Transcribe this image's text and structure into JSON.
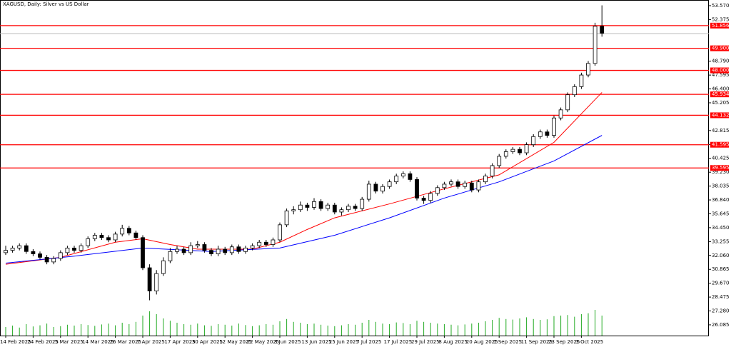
{
  "chart_data": {
    "type": "candlestick",
    "title": "XAGUSD, Daily:  Silver vs US Dollar",
    "categories": [
      "14 Feb 2025",
      null,
      null,
      null,
      "24 Feb 2025",
      null,
      null,
      null,
      "5 Mar 2025",
      null,
      null,
      null,
      "14 Mar 2025",
      null,
      null,
      null,
      "26 Mar 2025",
      null,
      null,
      null,
      "7 Apr 2025",
      null,
      null,
      null,
      "17 Apr 2025",
      null,
      null,
      null,
      "30 Apr 2025",
      null,
      null,
      null,
      "12 May 2025",
      null,
      null,
      null,
      "22 May 2025",
      null,
      null,
      null,
      "3 Jun 2025",
      null,
      null,
      null,
      "13 Jun 2025",
      null,
      null,
      null,
      "25 Jun 2025",
      null,
      null,
      null,
      "7 Jul 2025",
      null,
      null,
      null,
      "17 Jul 2025",
      null,
      null,
      null,
      "29 Jul 2025",
      null,
      null,
      null,
      "8 Aug 2025",
      null,
      null,
      null,
      "20 Aug 2025",
      null,
      null,
      null,
      "1 Sep 2025",
      null,
      null,
      null,
      "11 Sep 2025",
      null,
      null,
      null,
      "23 Sep 2025",
      null,
      null,
      null,
      "3 Oct 2025",
      null,
      null,
      null
    ],
    "ohlc": [
      [
        32.3,
        32.9,
        32.1,
        32.5
      ],
      [
        32.5,
        32.9,
        32.3,
        32.7
      ],
      [
        32.7,
        33.1,
        32.5,
        32.9
      ],
      [
        32.9,
        33.1,
        32.2,
        32.4
      ],
      [
        32.4,
        32.6,
        32.0,
        32.2
      ],
      [
        32.2,
        32.4,
        31.7,
        31.9
      ],
      [
        31.9,
        32.1,
        31.3,
        31.5
      ],
      [
        31.5,
        32.0,
        31.3,
        31.8
      ],
      [
        31.8,
        32.5,
        31.6,
        32.3
      ],
      [
        32.3,
        32.9,
        32.1,
        32.7
      ],
      [
        32.7,
        32.9,
        32.3,
        32.5
      ],
      [
        32.5,
        33.1,
        32.3,
        32.9
      ],
      [
        32.9,
        33.7,
        32.7,
        33.5
      ],
      [
        33.5,
        34.0,
        33.3,
        33.8
      ],
      [
        33.8,
        34.0,
        33.4,
        33.6
      ],
      [
        33.6,
        33.8,
        33.2,
        33.4
      ],
      [
        33.4,
        34.1,
        33.2,
        33.9
      ],
      [
        33.9,
        34.7,
        33.7,
        34.4
      ],
      [
        34.4,
        34.6,
        33.8,
        34.0
      ],
      [
        34.0,
        34.2,
        33.4,
        33.6
      ],
      [
        33.6,
        33.8,
        30.8,
        31.0
      ],
      [
        31.0,
        31.3,
        28.2,
        29.0
      ],
      [
        29.0,
        30.8,
        28.7,
        30.5
      ],
      [
        30.5,
        31.9,
        30.3,
        31.6
      ],
      [
        31.6,
        32.7,
        31.4,
        32.4
      ],
      [
        32.4,
        32.9,
        32.2,
        32.6
      ],
      [
        32.6,
        32.8,
        32.1,
        32.3
      ],
      [
        32.3,
        33.2,
        32.1,
        32.9
      ],
      [
        32.9,
        33.3,
        32.7,
        33.0
      ],
      [
        33.0,
        33.2,
        32.3,
        32.5
      ],
      [
        32.5,
        32.7,
        32.0,
        32.2
      ],
      [
        32.2,
        32.9,
        32.0,
        32.6
      ],
      [
        32.6,
        32.8,
        32.1,
        32.3
      ],
      [
        32.3,
        33.0,
        32.1,
        32.8
      ],
      [
        32.8,
        33.0,
        32.2,
        32.4
      ],
      [
        32.4,
        32.9,
        32.2,
        32.7
      ],
      [
        32.7,
        33.1,
        32.5,
        32.9
      ],
      [
        32.9,
        33.4,
        32.7,
        33.2
      ],
      [
        33.2,
        33.4,
        32.8,
        33.0
      ],
      [
        33.0,
        33.6,
        32.8,
        33.4
      ],
      [
        33.4,
        34.9,
        33.2,
        34.7
      ],
      [
        34.7,
        36.1,
        34.5,
        35.9
      ],
      [
        35.9,
        36.3,
        35.6,
        36.0
      ],
      [
        36.0,
        36.7,
        35.8,
        36.4
      ],
      [
        36.4,
        36.6,
        35.9,
        36.2
      ],
      [
        36.2,
        37.0,
        36.0,
        36.7
      ],
      [
        36.7,
        36.9,
        35.9,
        36.1
      ],
      [
        36.1,
        36.6,
        35.9,
        36.4
      ],
      [
        36.4,
        36.6,
        35.6,
        35.8
      ],
      [
        35.8,
        36.2,
        35.5,
        36.0
      ],
      [
        36.0,
        36.5,
        35.8,
        36.3
      ],
      [
        36.3,
        36.5,
        35.9,
        36.1
      ],
      [
        36.1,
        37.1,
        35.9,
        36.9
      ],
      [
        36.9,
        38.5,
        36.7,
        38.2
      ],
      [
        38.2,
        38.4,
        37.4,
        37.6
      ],
      [
        37.6,
        38.2,
        37.4,
        38.0
      ],
      [
        38.0,
        38.6,
        37.8,
        38.4
      ],
      [
        38.4,
        39.1,
        38.2,
        38.9
      ],
      [
        38.9,
        39.3,
        38.7,
        39.1
      ],
      [
        39.1,
        39.3,
        38.4,
        38.6
      ],
      [
        38.6,
        38.8,
        36.8,
        37.0
      ],
      [
        37.0,
        37.2,
        36.5,
        36.8
      ],
      [
        36.8,
        37.6,
        36.6,
        37.4
      ],
      [
        37.4,
        38.1,
        37.2,
        37.9
      ],
      [
        37.9,
        38.4,
        37.7,
        38.2
      ],
      [
        38.2,
        38.6,
        38.0,
        38.4
      ],
      [
        38.4,
        38.6,
        37.8,
        38.0
      ],
      [
        38.0,
        38.5,
        37.8,
        38.3
      ],
      [
        38.3,
        38.5,
        37.5,
        37.7
      ],
      [
        37.7,
        38.6,
        37.5,
        38.4
      ],
      [
        38.4,
        39.1,
        38.2,
        38.9
      ],
      [
        38.9,
        40.0,
        38.7,
        39.8
      ],
      [
        39.8,
        40.8,
        39.6,
        40.6
      ],
      [
        40.6,
        41.2,
        40.4,
        41.0
      ],
      [
        41.0,
        41.4,
        40.8,
        41.2
      ],
      [
        41.2,
        41.4,
        40.7,
        40.9
      ],
      [
        40.9,
        41.8,
        40.7,
        41.6
      ],
      [
        41.6,
        42.5,
        41.4,
        42.3
      ],
      [
        42.3,
        42.9,
        42.1,
        42.7
      ],
      [
        42.7,
        42.9,
        42.2,
        42.4
      ],
      [
        42.4,
        44.1,
        42.2,
        43.9
      ],
      [
        43.9,
        44.8,
        43.7,
        44.6
      ],
      [
        44.6,
        46.1,
        44.4,
        45.9
      ],
      [
        45.9,
        46.8,
        45.7,
        46.6
      ],
      [
        46.6,
        47.8,
        46.4,
        47.6
      ],
      [
        47.6,
        48.8,
        47.4,
        48.6
      ],
      [
        48.6,
        52.1,
        48.4,
        51.8
      ],
      [
        51.8,
        53.6,
        50.9,
        51.2
      ]
    ],
    "volume": [
      30,
      35,
      28,
      40,
      32,
      36,
      42,
      30,
      33,
      38,
      35,
      40,
      37,
      34,
      39,
      42,
      36,
      45,
      40,
      48,
      70,
      85,
      75,
      60,
      52,
      45,
      40,
      38,
      42,
      36,
      34,
      40,
      38,
      35,
      42,
      37,
      33,
      36,
      40,
      38,
      50,
      58,
      48,
      45,
      40,
      42,
      38,
      35,
      33,
      36,
      40,
      38,
      45,
      55,
      48,
      42,
      40,
      46,
      44,
      40,
      52,
      48,
      45,
      42,
      40,
      38,
      36,
      39,
      42,
      45,
      50,
      55,
      62,
      58,
      56,
      60,
      64,
      58,
      55,
      57,
      68,
      70,
      72,
      66,
      75,
      78,
      90,
      70
    ],
    "vlim": [
      0,
      100
    ],
    "volume_color": "#22aa22",
    "moving_averages": [
      {
        "color": "#ff0000",
        "x": [
          0,
          8,
          16,
          20,
          24,
          28,
          36,
          40,
          44,
          48,
          56,
          64,
          72,
          80,
          87
        ],
        "values": [
          31.3,
          31.9,
          33.2,
          33.5,
          33.0,
          32.6,
          32.6,
          33.2,
          34.3,
          35.3,
          36.5,
          37.8,
          39.0,
          41.8,
          46.1
        ]
      },
      {
        "color": "#0000ff",
        "x": [
          0,
          10,
          20,
          30,
          40,
          48,
          56,
          64,
          72,
          80,
          87
        ],
        "values": [
          31.4,
          32.0,
          32.7,
          32.4,
          32.7,
          33.8,
          35.3,
          37.0,
          38.4,
          40.2,
          42.4
        ]
      }
    ],
    "levels": [
      51.856,
      {
        "value": 49.9,
        "label": "49.900"
      },
      {
        "value": 48.0,
        "label": "48.000"
      },
      45.934,
      44.132,
      41.595,
      39.595
    ],
    "level_color": "#ff0000",
    "current_price": 51.17,
    "ylim": [
      25.16,
      54.06
    ],
    "yticks": [
      {
        "value": 53.57,
        "label": "53.570"
      },
      52.375,
      {
        "value": 48.79,
        "label": "48.790"
      },
      47.595,
      {
        "value": 46.4,
        "label": "46.400"
      },
      45.205,
      42.815,
      {
        "value": 41.62,
        "label": "41.620"
      },
      40.425,
      {
        "value": 39.23,
        "label": "39.230"
      },
      38.035,
      {
        "value": 36.84,
        "label": "36.840"
      },
      35.645,
      {
        "value": 34.45,
        "label": "34.450"
      },
      33.255,
      {
        "value": 32.06,
        "label": "32.060"
      },
      30.865,
      {
        "value": 29.67,
        "label": "29.670"
      },
      28.475,
      {
        "value": 27.28,
        "label": "27.280"
      },
      26.085
    ]
  }
}
